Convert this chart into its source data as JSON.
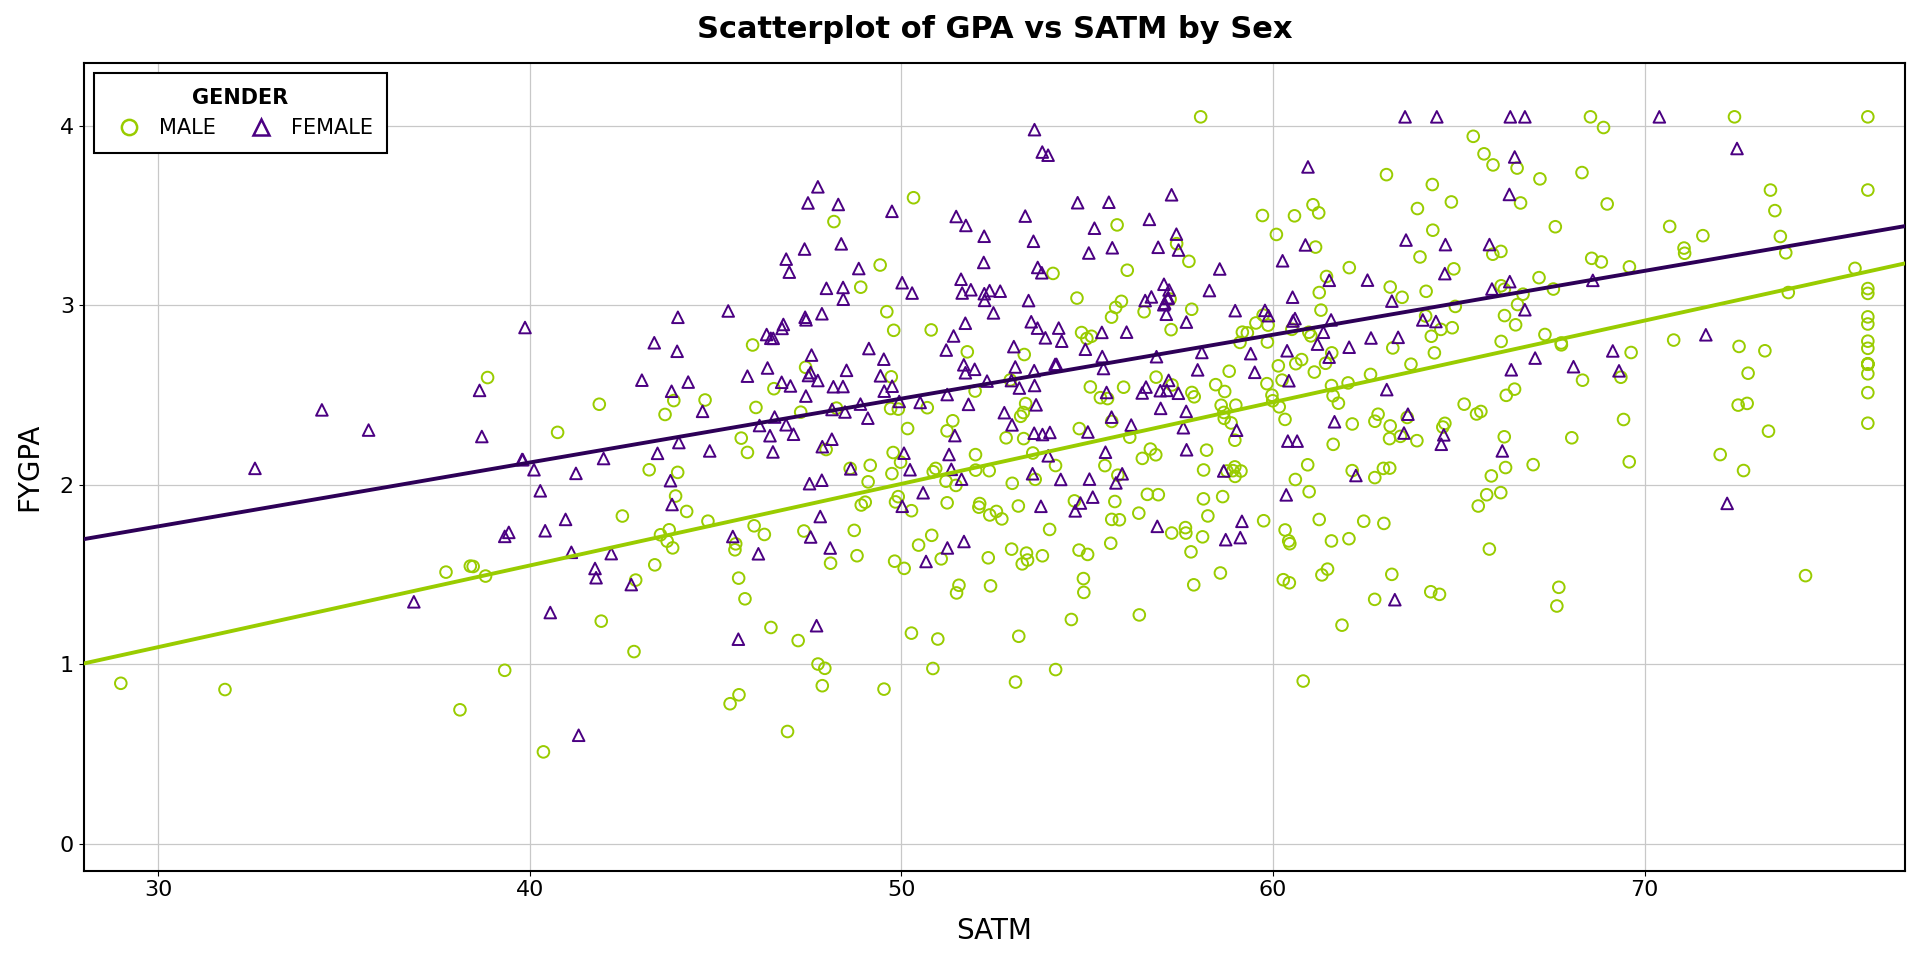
{
  "title": "Scatterplot of GPA vs SATM by Sex",
  "xlabel": "SATM",
  "ylabel": "FYGPA",
  "xlim": [
    28,
    77
  ],
  "ylim": [
    -0.15,
    4.35
  ],
  "xticks": [
    30,
    40,
    50,
    60,
    70
  ],
  "yticks": [
    0,
    1,
    2,
    3,
    4
  ],
  "male_color": "#99CC00",
  "female_color": "#4B0082",
  "male_marker": "o",
  "female_marker": "^",
  "male_line_color": "#99CC00",
  "female_line_color": "#2D0057",
  "legend_title": "GENDER",
  "legend_male": "MALE",
  "legend_female": "FEMALE",
  "background_color": "#FFFFFF",
  "grid_color": "#C8C8C8",
  "female_slope": 0.0356,
  "female_intercept": 0.7,
  "male_slope": 0.0455,
  "male_intercept": -0.27,
  "seed": 42,
  "n_male": 380,
  "n_female": 280
}
